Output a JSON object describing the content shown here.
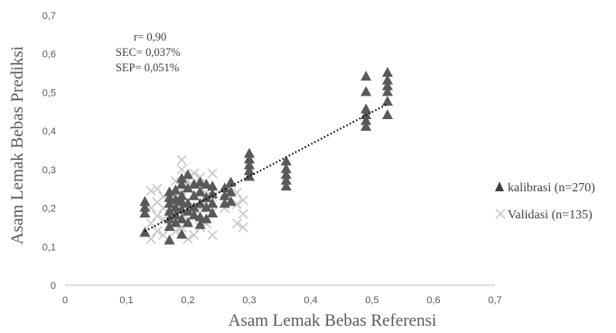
{
  "chart_data": {
    "type": "scatter",
    "xlabel": "Asam Lemak Bebas Referensi",
    "ylabel": "Asam Lemak Bebas Prediksi",
    "xlim": [
      0,
      0.7
    ],
    "ylim": [
      0,
      0.7
    ],
    "x_ticks": [
      "0",
      "0,1",
      "0,2",
      "0,3",
      "0,4",
      "0,5",
      "0,6",
      "0,7"
    ],
    "y_ticks": [
      "0",
      "0,1",
      "0,2",
      "0,3",
      "0,4",
      "0,5",
      "0,6",
      "0,7"
    ],
    "grid": false,
    "legend_position": "right",
    "annotations": [
      "r= 0,90",
      "SEC= 0,037%",
      "SEP= 0,051%"
    ],
    "trendline": {
      "style": "dotted",
      "x": [
        0.13,
        0.525
      ],
      "y": [
        0.14,
        0.47
      ]
    },
    "series": [
      {
        "name": "kalibrasi (n=270)",
        "marker": "triangle",
        "color": "#595959",
        "points": [
          [
            0.13,
            0.135
          ],
          [
            0.13,
            0.185
          ],
          [
            0.13,
            0.2
          ],
          [
            0.13,
            0.215
          ],
          [
            0.17,
            0.115
          ],
          [
            0.17,
            0.15
          ],
          [
            0.17,
            0.17
          ],
          [
            0.17,
            0.19
          ],
          [
            0.17,
            0.21
          ],
          [
            0.17,
            0.225
          ],
          [
            0.17,
            0.24
          ],
          [
            0.18,
            0.16
          ],
          [
            0.18,
            0.18
          ],
          [
            0.18,
            0.2
          ],
          [
            0.18,
            0.22
          ],
          [
            0.18,
            0.245
          ],
          [
            0.19,
            0.13
          ],
          [
            0.19,
            0.17
          ],
          [
            0.19,
            0.195
          ],
          [
            0.19,
            0.215
          ],
          [
            0.19,
            0.23
          ],
          [
            0.19,
            0.26
          ],
          [
            0.19,
            0.275
          ],
          [
            0.2,
            0.16
          ],
          [
            0.2,
            0.19
          ],
          [
            0.2,
            0.21
          ],
          [
            0.2,
            0.25
          ],
          [
            0.2,
            0.285
          ],
          [
            0.21,
            0.18
          ],
          [
            0.21,
            0.2
          ],
          [
            0.21,
            0.23
          ],
          [
            0.21,
            0.26
          ],
          [
            0.22,
            0.155
          ],
          [
            0.22,
            0.175
          ],
          [
            0.22,
            0.21
          ],
          [
            0.22,
            0.24
          ],
          [
            0.22,
            0.265
          ],
          [
            0.23,
            0.17
          ],
          [
            0.23,
            0.2
          ],
          [
            0.23,
            0.225
          ],
          [
            0.23,
            0.26
          ],
          [
            0.24,
            0.185
          ],
          [
            0.24,
            0.21
          ],
          [
            0.24,
            0.235
          ],
          [
            0.24,
            0.255
          ],
          [
            0.26,
            0.21
          ],
          [
            0.26,
            0.23
          ],
          [
            0.26,
            0.25
          ],
          [
            0.27,
            0.215
          ],
          [
            0.27,
            0.24
          ],
          [
            0.27,
            0.265
          ],
          [
            0.3,
            0.28
          ],
          [
            0.3,
            0.295
          ],
          [
            0.3,
            0.31
          ],
          [
            0.3,
            0.325
          ],
          [
            0.3,
            0.34
          ],
          [
            0.36,
            0.255
          ],
          [
            0.36,
            0.27
          ],
          [
            0.36,
            0.285
          ],
          [
            0.36,
            0.3
          ],
          [
            0.36,
            0.32
          ],
          [
            0.49,
            0.41
          ],
          [
            0.49,
            0.425
          ],
          [
            0.49,
            0.44
          ],
          [
            0.49,
            0.455
          ],
          [
            0.49,
            0.5
          ],
          [
            0.49,
            0.54
          ],
          [
            0.525,
            0.44
          ],
          [
            0.525,
            0.475
          ],
          [
            0.525,
            0.5
          ],
          [
            0.525,
            0.515
          ],
          [
            0.525,
            0.53
          ],
          [
            0.525,
            0.55
          ]
        ]
      },
      {
        "name": "Validasi (n=135)",
        "marker": "x",
        "color": "#c6c6c6",
        "points": [
          [
            0.14,
            0.12
          ],
          [
            0.14,
            0.16
          ],
          [
            0.14,
            0.2
          ],
          [
            0.14,
            0.245
          ],
          [
            0.15,
            0.14
          ],
          [
            0.15,
            0.18
          ],
          [
            0.15,
            0.215
          ],
          [
            0.15,
            0.25
          ],
          [
            0.16,
            0.13
          ],
          [
            0.16,
            0.17
          ],
          [
            0.16,
            0.2
          ],
          [
            0.16,
            0.23
          ],
          [
            0.18,
            0.14
          ],
          [
            0.18,
            0.19
          ],
          [
            0.18,
            0.23
          ],
          [
            0.18,
            0.27
          ],
          [
            0.19,
            0.15
          ],
          [
            0.19,
            0.2
          ],
          [
            0.19,
            0.245
          ],
          [
            0.19,
            0.3
          ],
          [
            0.19,
            0.325
          ],
          [
            0.2,
            0.12
          ],
          [
            0.2,
            0.17
          ],
          [
            0.2,
            0.22
          ],
          [
            0.2,
            0.27
          ],
          [
            0.21,
            0.13
          ],
          [
            0.21,
            0.18
          ],
          [
            0.21,
            0.235
          ],
          [
            0.21,
            0.29
          ],
          [
            0.22,
            0.15
          ],
          [
            0.22,
            0.2
          ],
          [
            0.22,
            0.25
          ],
          [
            0.22,
            0.28
          ],
          [
            0.23,
            0.16
          ],
          [
            0.23,
            0.21
          ],
          [
            0.23,
            0.24
          ],
          [
            0.24,
            0.13
          ],
          [
            0.24,
            0.19
          ],
          [
            0.24,
            0.23
          ],
          [
            0.24,
            0.29
          ],
          [
            0.26,
            0.2
          ],
          [
            0.26,
            0.24
          ],
          [
            0.28,
            0.16
          ],
          [
            0.28,
            0.21
          ],
          [
            0.28,
            0.24
          ],
          [
            0.29,
            0.15
          ],
          [
            0.29,
            0.185
          ],
          [
            0.29,
            0.22
          ]
        ]
      }
    ]
  }
}
